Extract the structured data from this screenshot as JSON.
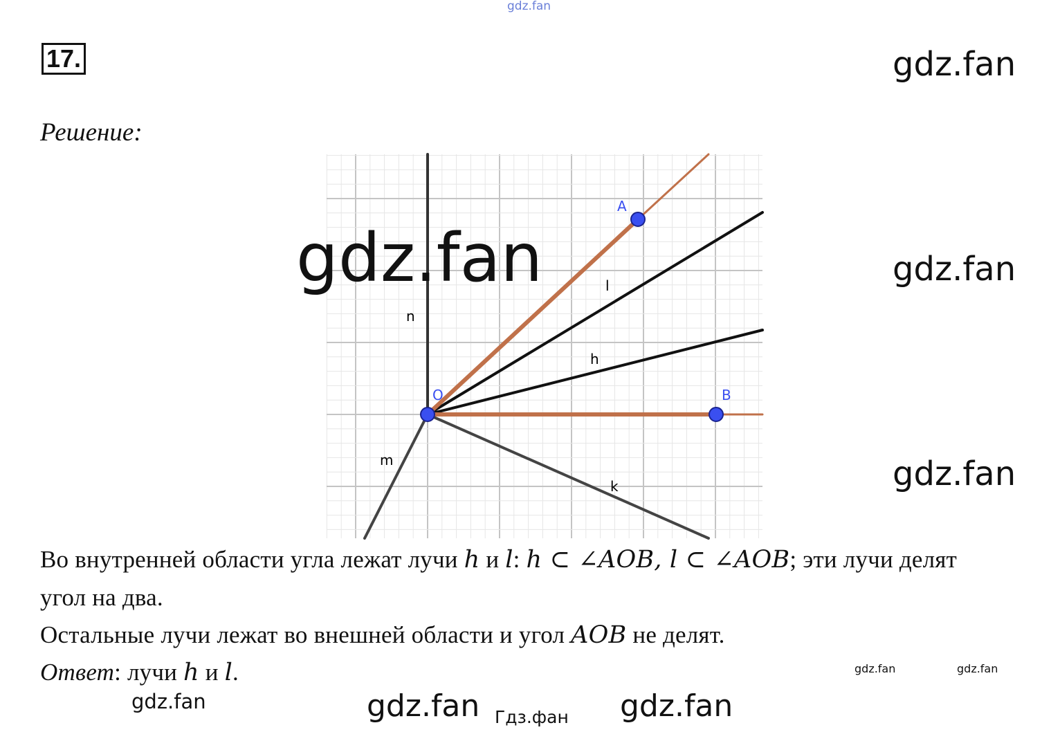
{
  "task_number": "17.",
  "solution_label": "Решение:",
  "diagram": {
    "points": {
      "A": "A",
      "B": "B",
      "O": "O"
    },
    "rays": {
      "n": "n",
      "l": "l",
      "h": "h",
      "m": "m",
      "k": "k"
    },
    "colors": {
      "angle_sides": "#c0714a",
      "rays": "#111111",
      "points": "#3a4ff0",
      "grid": "#cfcfcf"
    }
  },
  "text": {
    "line1_a": "Во внутренней области угла лежат лучи ",
    "line1_h": "h",
    "line1_and": " и ",
    "line1_l": "l",
    "line1_colon": ": ",
    "line1_math": "h ⊂ ∠AOB, l ⊂ ∠AOB",
    "line1_b": "; эти лучи делят",
    "line2": "угол на два.",
    "line3_a": "Остальные лучи лежат во внешней области и угол ",
    "line3_aob": "AOB",
    "line3_b": " не делят.",
    "answer_label": "Ответ",
    "answer_a": ": лучи ",
    "answer_h": "h",
    "answer_and": " и ",
    "answer_l": "l",
    "answer_end": "."
  },
  "watermarks": {
    "top": "gdz.fan",
    "right1": "gdz.fan",
    "right2": "gdz.fan",
    "right3": "gdz.fan",
    "big": "gdz.fan",
    "bottom1": "gdz.fan",
    "bottom2": "gdz.fan",
    "bottom3": "gdz.fan",
    "bottom4": "gdz.fan",
    "bottom5": "gdz.fan",
    "footer": "Гдз.фан"
  }
}
